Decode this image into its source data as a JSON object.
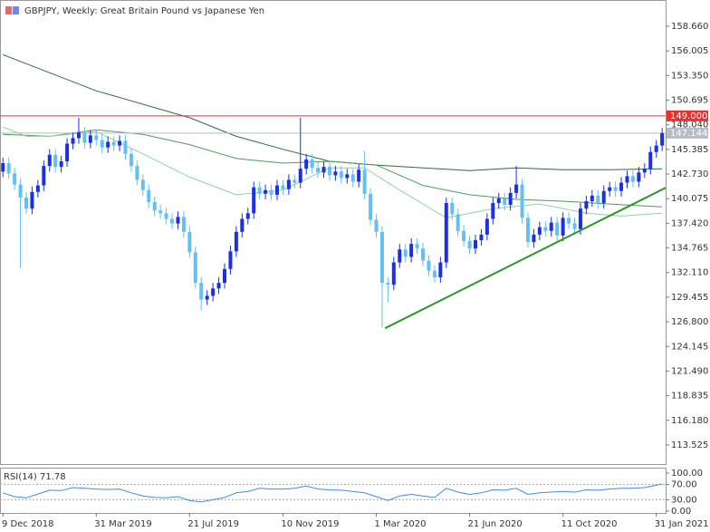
{
  "chart_data": [
    {
      "type": "candlestick",
      "title": "GBPJPY, Weekly:  Great Britain Pound vs Japanese Yen",
      "up_color": "#1a2fe6",
      "down_color": "#62c0f2",
      "open": [
        143.0,
        143.9,
        142.8,
        141.6,
        140.2,
        139.0,
        140.8,
        141.5,
        143.6,
        144.8,
        143.5,
        144.1,
        146.0,
        146.6,
        147.2,
        146.1,
        146.9,
        146.4,
        145.6,
        146.2,
        145.8,
        146.3,
        144.9,
        143.6,
        142.1,
        141.0,
        139.7,
        138.8,
        138.5,
        137.9,
        137.4,
        138.1,
        136.5,
        134.3,
        131.0,
        129.2,
        129.6,
        130.4,
        131.0,
        132.5,
        134.4,
        136.5,
        137.9,
        138.5,
        141.3,
        140.6,
        141.0,
        140.5,
        141.5,
        141.1,
        142.1,
        141.8,
        143.3,
        144.3,
        143.4,
        142.9,
        143.5,
        142.6,
        143.0,
        142.3,
        142.7,
        141.9,
        143.2,
        140.6,
        137.8,
        136.5,
        131.0,
        130.8,
        133.2,
        134.6,
        133.8,
        135.2,
        134.7,
        133.4,
        132.3,
        131.6,
        133.2,
        139.6,
        138.4,
        136.6,
        135.5,
        134.7,
        135.6,
        136.2,
        137.9,
        139.6,
        140.1,
        139.4,
        140.7,
        141.6,
        138.0,
        135.4,
        136.2,
        137.0,
        136.6,
        137.5,
        136.1,
        138.0,
        137.4,
        136.8,
        139.0,
        139.8,
        140.4,
        139.6,
        140.9,
        141.3,
        140.9,
        141.8,
        142.5,
        141.9,
        142.9,
        143.3,
        145.1,
        145.8
      ],
      "high": [
        144.5,
        144.5,
        143.4,
        142.2,
        140.8,
        141.4,
        142.1,
        144.2,
        145.4,
        145.4,
        144.7,
        146.6,
        147.2,
        148.8,
        147.8,
        147.5,
        147.5,
        147.0,
        146.8,
        146.8,
        146.9,
        146.9,
        145.5,
        144.2,
        142.7,
        141.6,
        140.3,
        139.4,
        139.1,
        138.5,
        138.7,
        138.7,
        137.1,
        134.9,
        131.6,
        130.2,
        131.0,
        131.6,
        133.1,
        135.0,
        137.1,
        138.5,
        139.1,
        141.9,
        141.9,
        141.6,
        141.6,
        142.1,
        142.1,
        142.7,
        142.7,
        148.8,
        144.9,
        144.9,
        144.0,
        144.1,
        144.1,
        143.6,
        143.6,
        143.3,
        143.3,
        143.8,
        145.2,
        141.2,
        138.4,
        137.1,
        131.6,
        133.8,
        135.2,
        135.2,
        135.8,
        135.8,
        135.3,
        134.0,
        132.9,
        133.8,
        140.2,
        140.2,
        139.0,
        137.2,
        136.1,
        136.2,
        136.8,
        138.5,
        140.2,
        140.7,
        140.7,
        141.3,
        143.6,
        142.2,
        138.6,
        136.8,
        137.6,
        137.6,
        138.1,
        138.1,
        138.6,
        138.6,
        138.0,
        139.6,
        140.4,
        141.0,
        141.0,
        141.5,
        141.9,
        141.9,
        142.4,
        143.1,
        143.1,
        143.5,
        143.9,
        145.7,
        146.4,
        147.7
      ],
      "low": [
        142.4,
        142.2,
        141.0,
        132.6,
        138.4,
        138.4,
        140.2,
        140.9,
        143.0,
        142.9,
        142.9,
        143.5,
        145.4,
        146.0,
        145.5,
        145.5,
        145.8,
        145.0,
        145.0,
        145.2,
        145.2,
        144.3,
        143.0,
        141.5,
        140.4,
        139.1,
        138.2,
        137.9,
        137.3,
        136.8,
        136.8,
        135.9,
        133.7,
        130.4,
        128.0,
        128.6,
        129.0,
        129.8,
        130.4,
        131.9,
        133.8,
        135.9,
        137.3,
        137.9,
        140.0,
        140.0,
        139.9,
        139.9,
        140.5,
        140.5,
        141.2,
        141.2,
        142.7,
        142.8,
        142.3,
        142.3,
        142.0,
        142.0,
        141.7,
        141.7,
        141.3,
        141.3,
        140.0,
        137.2,
        135.9,
        126.2,
        128.9,
        130.2,
        132.6,
        133.2,
        133.2,
        134.1,
        132.8,
        131.7,
        131.0,
        131.0,
        132.6,
        137.8,
        136.0,
        134.9,
        134.1,
        134.1,
        135.0,
        135.6,
        137.3,
        139.0,
        138.8,
        138.8,
        140.1,
        137.4,
        134.8,
        134.8,
        135.6,
        136.0,
        136.0,
        135.5,
        135.5,
        136.8,
        136.2,
        136.2,
        138.4,
        139.2,
        139.0,
        139.0,
        140.3,
        140.3,
        140.3,
        141.2,
        141.3,
        141.3,
        142.3,
        142.7,
        144.5,
        145.2
      ],
      "close": [
        143.9,
        142.8,
        141.6,
        140.2,
        139.0,
        140.8,
        141.5,
        143.6,
        144.8,
        143.5,
        144.1,
        146.0,
        146.6,
        147.2,
        146.1,
        146.9,
        146.4,
        145.6,
        146.2,
        145.8,
        146.3,
        144.9,
        143.6,
        142.1,
        141.0,
        139.7,
        138.8,
        138.5,
        137.9,
        137.4,
        138.1,
        136.5,
        134.3,
        131.0,
        129.2,
        129.6,
        130.4,
        131.0,
        132.5,
        134.4,
        136.5,
        137.9,
        138.5,
        141.3,
        140.6,
        141.0,
        140.5,
        141.5,
        141.1,
        142.1,
        141.8,
        143.3,
        144.3,
        143.4,
        142.9,
        143.5,
        142.6,
        143.0,
        142.3,
        142.7,
        141.9,
        143.2,
        140.6,
        137.8,
        136.5,
        131.0,
        130.8,
        133.2,
        134.6,
        133.8,
        135.2,
        134.7,
        133.4,
        132.3,
        131.6,
        133.2,
        139.6,
        138.4,
        136.6,
        135.5,
        134.7,
        135.6,
        136.2,
        137.9,
        139.6,
        140.1,
        139.4,
        140.7,
        141.6,
        138.0,
        135.4,
        136.2,
        137.0,
        136.6,
        137.5,
        136.1,
        138.0,
        137.4,
        136.8,
        139.0,
        139.8,
        140.4,
        139.6,
        140.9,
        141.3,
        140.9,
        141.8,
        142.5,
        141.9,
        142.9,
        143.3,
        145.1,
        145.8,
        147.14
      ],
      "lines": [
        {
          "color": "#2e6b3a",
          "x": [
            0,
            16,
            32,
            40,
            48,
            56,
            64,
            72,
            80,
            88,
            96,
            104,
            113
          ],
          "values": [
            155.6,
            151.7,
            148.8,
            146.8,
            145.4,
            144.1,
            143.7,
            143.4,
            143.1,
            143.4,
            143.2,
            143.2,
            143.3
          ]
        },
        {
          "color": "#4f9a5c",
          "x": [
            0,
            8,
            16,
            24,
            32,
            40,
            48,
            56,
            64,
            72,
            80,
            88,
            96,
            104,
            113
          ],
          "values": [
            147.0,
            146.8,
            147.5,
            147.0,
            145.9,
            144.4,
            143.9,
            144.1,
            143.7,
            141.5,
            140.5,
            140.0,
            139.8,
            139.5,
            139.2
          ]
        },
        {
          "color": "#8fd3a0",
          "x": [
            0,
            4,
            8,
            16,
            24,
            32,
            40,
            48,
            56,
            62,
            68,
            76,
            84,
            92,
            100,
            106,
            113
          ],
          "values": [
            147.8,
            146.8,
            146.8,
            147.3,
            144.9,
            142.4,
            140.5,
            141.0,
            143.4,
            143.4,
            141.0,
            138.0,
            139.0,
            139.5,
            138.5,
            138.2,
            138.5
          ]
        }
      ],
      "trendline": {
        "color": "#2a9a2a",
        "x": [
          65.5,
          113.6
        ],
        "values": [
          126.1,
          141.25
        ]
      },
      "levels": [
        {
          "value": 149,
          "label": "149.000",
          "color": "#e8312f"
        },
        {
          "value": 147.144,
          "label": "147.144",
          "color": "#b8bcc4"
        }
      ],
      "xlim": [
        -0.5,
        113.6
      ],
      "ylim": [
        111.47,
        161.49
      ],
      "yticks": [
        {
          "value": 158.66,
          "label": "158.660"
        },
        {
          "value": 156.005,
          "label": "156.005"
        },
        {
          "value": 153.35,
          "label": "153.350"
        },
        {
          "value": 150.695,
          "label": "150.695"
        },
        {
          "value": 148.04,
          "label": "148.040"
        },
        {
          "value": 145.385,
          "label": "145.385"
        },
        {
          "value": 142.73,
          "label": "142.730"
        },
        {
          "value": 140.075,
          "label": "140.075"
        },
        {
          "value": 137.42,
          "label": "137.420"
        },
        {
          "value": 134.765,
          "label": "134.765"
        },
        {
          "value": 132.11,
          "label": "132.110"
        },
        {
          "value": 129.455,
          "label": "129.455"
        },
        {
          "value": 126.8,
          "label": "126.800"
        },
        {
          "value": 124.145,
          "label": "124.145"
        },
        {
          "value": 121.49,
          "label": "121.490"
        },
        {
          "value": 118.835,
          "label": "118.835"
        },
        {
          "value": 116.18,
          "label": "116.180"
        },
        {
          "value": 113.525,
          "label": "113.525"
        }
      ]
    },
    {
      "type": "line",
      "title": "RSI(14) 71.78",
      "series": [
        {
          "color": "#3d8fe0",
          "x": [
            0,
            2,
            4,
            6,
            8,
            10,
            12,
            14,
            16,
            18,
            20,
            22,
            24,
            26,
            28,
            30,
            32,
            34,
            36,
            38,
            40,
            42,
            44,
            46,
            48,
            50,
            52,
            54,
            56,
            58,
            60,
            62,
            64,
            66,
            68,
            70,
            72,
            74,
            76,
            78,
            80,
            82,
            84,
            86,
            88,
            90,
            92,
            94,
            96,
            98,
            100,
            102,
            104,
            106,
            108,
            110,
            112,
            113
          ],
          "values": [
            48,
            38,
            35,
            45,
            55,
            54,
            62,
            60,
            58,
            57,
            58,
            48,
            40,
            36,
            35,
            38,
            28,
            24,
            30,
            36,
            48,
            52,
            60,
            58,
            58,
            60,
            66,
            58,
            56,
            55,
            52,
            48,
            38,
            28,
            40,
            44,
            40,
            36,
            60,
            50,
            44,
            48,
            56,
            55,
            60,
            44,
            48,
            50,
            52,
            50,
            56,
            55,
            58,
            60,
            60,
            62,
            68,
            71.78
          ]
        }
      ],
      "xlim": [
        -0.5,
        113.6
      ],
      "ylim": [
        -4.76,
        114.29
      ],
      "yticks": [
        {
          "value": 100,
          "label": "100.00"
        },
        {
          "value": 70,
          "label": "70.00"
        },
        {
          "value": 30,
          "label": "30.00"
        },
        {
          "value": 0,
          "label": "0.00"
        }
      ],
      "xticks": [
        {
          "value": 0,
          "label": "9 Dec 2018"
        },
        {
          "value": 16,
          "label": "31 Mar 2019"
        },
        {
          "value": 32,
          "label": "21 Jul 2019"
        },
        {
          "value": 48,
          "label": "10 Nov 2019"
        },
        {
          "value": 64,
          "label": "1 Mar 2020"
        },
        {
          "value": 80,
          "label": "21 Jun 2020"
        },
        {
          "value": 96,
          "label": "11 Oct 2020"
        },
        {
          "value": 112,
          "label": "31 Jan 2021"
        }
      ]
    }
  ]
}
